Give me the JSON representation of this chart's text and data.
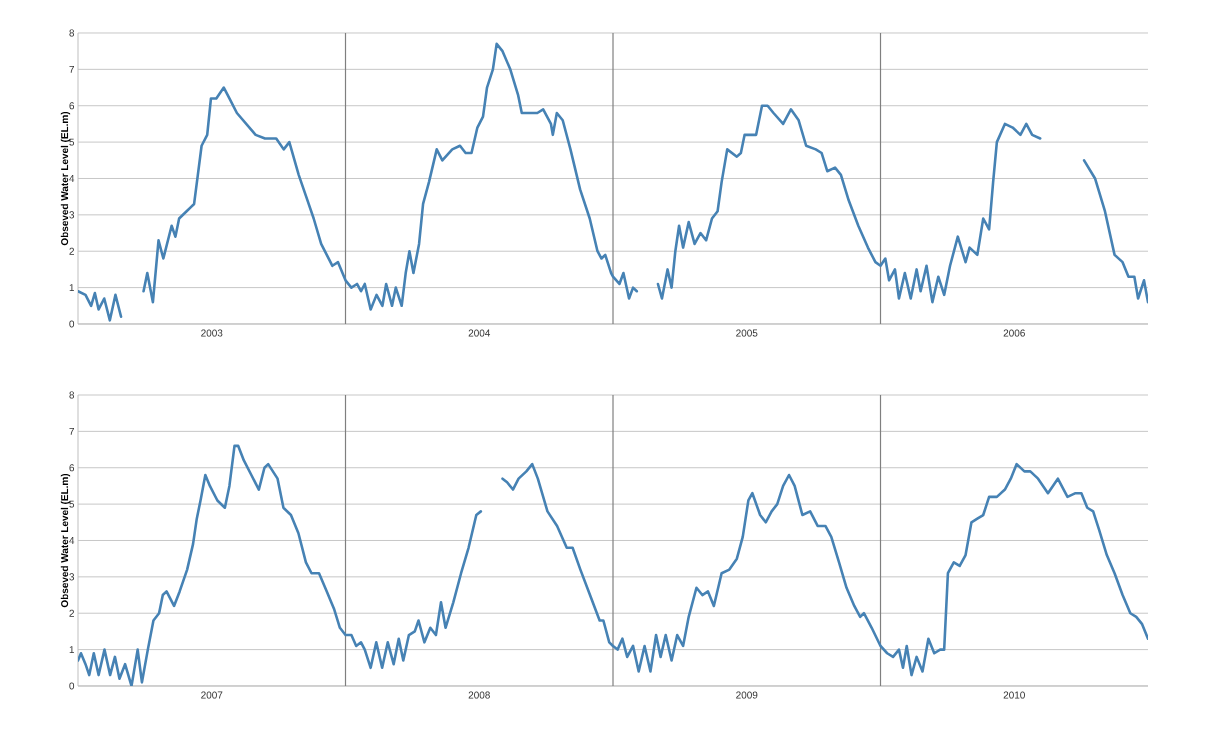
{
  "chart_data": [
    {
      "type": "line",
      "ylabel": "Obseved Water Level (EL.m)",
      "grid": "y",
      "xlim": [
        2003,
        2007
      ],
      "ylim": [
        0,
        8
      ],
      "yticks": [
        0,
        1,
        2,
        3,
        4,
        5,
        6,
        7,
        8
      ],
      "xticks": [
        {
          "value": 2003.5,
          "label": "2003"
        },
        {
          "value": 2004.5,
          "label": "2004"
        },
        {
          "value": 2005.5,
          "label": "2005"
        },
        {
          "value": 2006.5,
          "label": "2006"
        }
      ],
      "ref_lines": [
        {
          "axis": "x",
          "value": 2004,
          "color": "#7f7f7f"
        },
        {
          "axis": "x",
          "value": 2005,
          "color": "#7f7f7f"
        },
        {
          "axis": "x",
          "value": 2006,
          "color": "#7f7f7f"
        }
      ],
      "x": [
        2003.0,
        2003.028,
        2003.049,
        2003.063,
        2003.077,
        2003.098,
        2003.119,
        2003.14,
        2003.161,
        2003.2,
        2003.245,
        2003.259,
        2003.28,
        2003.301,
        2003.319,
        2003.35,
        2003.364,
        2003.378,
        2003.406,
        2003.42,
        2003.434,
        2003.448,
        2003.462,
        2003.483,
        2003.497,
        2003.517,
        2003.545,
        2003.566,
        2003.594,
        2003.629,
        2003.664,
        2003.699,
        2003.741,
        2003.769,
        2003.79,
        2003.825,
        2003.853,
        2003.881,
        2003.909,
        2003.93,
        2003.951,
        2003.972,
        2004.0,
        2004.022,
        2004.043,
        2004.058,
        2004.072,
        2004.094,
        2004.116,
        2004.138,
        2004.152,
        2004.174,
        2004.188,
        2004.21,
        2004.225,
        2004.239,
        2004.254,
        2004.275,
        2004.29,
        2004.312,
        2004.341,
        2004.362,
        2004.399,
        2004.428,
        2004.449,
        2004.471,
        2004.493,
        2004.514,
        2004.529,
        2004.551,
        2004.565,
        2004.587,
        2004.616,
        2004.645,
        2004.659,
        2004.688,
        2004.717,
        2004.739,
        2004.768,
        2004.775,
        2004.79,
        2004.812,
        2004.841,
        2004.877,
        2004.913,
        2004.942,
        2004.957,
        2004.971,
        2004.993,
        2005.0,
        2005.024,
        2005.039,
        2005.06,
        2005.075,
        2005.089,
        2005.13,
        2005.168,
        2005.183,
        2005.204,
        2005.219,
        2005.233,
        2005.247,
        2005.262,
        2005.283,
        2005.305,
        2005.327,
        2005.348,
        2005.37,
        2005.391,
        2005.406,
        2005.427,
        2005.463,
        2005.478,
        2005.492,
        2005.521,
        2005.535,
        2005.557,
        2005.578,
        2005.6,
        2005.636,
        2005.665,
        2005.694,
        2005.722,
        2005.758,
        2005.78,
        2005.801,
        2005.83,
        2005.852,
        2005.881,
        2005.917,
        2005.953,
        2005.981,
        2006.0,
        2006.018,
        2006.032,
        2006.054,
        2006.069,
        2006.091,
        2006.113,
        2006.135,
        2006.15,
        2006.172,
        2006.194,
        2006.216,
        2006.238,
        2006.26,
        2006.289,
        2006.318,
        2006.333,
        2006.362,
        2006.384,
        2006.406,
        2006.421,
        2006.435,
        2006.465,
        2006.494,
        2006.523,
        2006.545,
        2006.567,
        2006.597,
        2006.68,
        2006.761,
        2006.802,
        2006.839,
        2006.875,
        2006.905,
        2006.927,
        2006.949,
        2006.963,
        2006.985,
        2007.0
      ],
      "series": [
        {
          "color": "#4682b4",
          "values": [
            0.9,
            0.8,
            0.5,
            0.85,
            0.4,
            0.7,
            0.1,
            0.8,
            0.2,
            null,
            0.9,
            1.4,
            0.6,
            2.3,
            1.8,
            2.7,
            2.4,
            2.9,
            3.1,
            3.2,
            3.3,
            4.1,
            4.9,
            5.2,
            6.2,
            6.2,
            6.5,
            6.2,
            5.8,
            5.5,
            5.2,
            5.1,
            5.1,
            4.8,
            5.0,
            4.1,
            3.5,
            2.9,
            2.2,
            1.9,
            1.6,
            1.7,
            1.2,
            1.0,
            1.1,
            0.9,
            1.1,
            0.4,
            0.8,
            0.5,
            1.1,
            0.5,
            1.0,
            0.5,
            1.4,
            2.0,
            1.4,
            2.2,
            3.3,
            3.9,
            4.8,
            4.5,
            4.8,
            4.9,
            4.7,
            4.7,
            5.4,
            5.7,
            6.5,
            7.0,
            7.7,
            7.5,
            7.0,
            6.3,
            5.8,
            5.8,
            5.8,
            5.9,
            5.5,
            5.2,
            5.8,
            5.6,
            4.8,
            3.7,
            2.9,
            2.0,
            1.8,
            1.9,
            1.4,
            1.3,
            1.1,
            1.4,
            0.7,
            1.0,
            0.9,
            null,
            1.1,
            0.7,
            1.5,
            1.0,
            2.0,
            2.7,
            2.1,
            2.8,
            2.2,
            2.5,
            2.3,
            2.9,
            3.1,
            3.9,
            4.8,
            4.6,
            4.7,
            5.2,
            5.2,
            5.2,
            6.0,
            6.0,
            5.8,
            5.5,
            5.9,
            5.6,
            4.9,
            4.8,
            4.7,
            4.2,
            4.3,
            4.1,
            3.4,
            2.7,
            2.1,
            1.7,
            1.6,
            1.8,
            1.2,
            1.5,
            0.7,
            1.4,
            0.7,
            1.5,
            0.9,
            1.6,
            0.6,
            1.3,
            0.8,
            1.6,
            2.4,
            1.7,
            2.1,
            1.9,
            2.9,
            2.6,
            3.9,
            5.0,
            5.5,
            5.4,
            5.2,
            5.5,
            5.2,
            5.1,
            null,
            4.5,
            4.0,
            3.1,
            1.9,
            1.7,
            1.3,
            1.3,
            0.7,
            1.2,
            0.6
          ]
        }
      ]
    },
    {
      "type": "line",
      "ylabel": "Obseved Water Level (EL.m)",
      "grid": "y",
      "xlim": [
        2007,
        2011
      ],
      "ylim": [
        0,
        8
      ],
      "yticks": [
        0,
        1,
        2,
        3,
        4,
        5,
        6,
        7,
        8
      ],
      "xticks": [
        {
          "value": 2007.5,
          "label": "2007"
        },
        {
          "value": 2008.5,
          "label": "2008"
        },
        {
          "value": 2009.5,
          "label": "2009"
        },
        {
          "value": 2010.5,
          "label": "2010"
        }
      ],
      "ref_lines": [
        {
          "axis": "x",
          "value": 2008,
          "color": "#7f7f7f"
        },
        {
          "axis": "x",
          "value": 2009,
          "color": "#7f7f7f"
        },
        {
          "axis": "x",
          "value": 2010,
          "color": "#7f7f7f"
        }
      ],
      "x": [
        2007.0,
        2007.011,
        2007.028,
        2007.042,
        2007.059,
        2007.077,
        2007.099,
        2007.12,
        2007.138,
        2007.155,
        2007.176,
        2007.2,
        2007.223,
        2007.239,
        2007.261,
        2007.282,
        2007.303,
        2007.317,
        2007.331,
        2007.359,
        2007.38,
        2007.408,
        2007.43,
        2007.444,
        2007.458,
        2007.476,
        2007.493,
        2007.521,
        2007.549,
        2007.566,
        2007.585,
        2007.599,
        2007.62,
        2007.648,
        2007.676,
        2007.697,
        2007.711,
        2007.746,
        2007.768,
        2007.796,
        2007.824,
        2007.852,
        2007.873,
        2007.901,
        2007.93,
        2007.958,
        2007.979,
        2008.0,
        2008.022,
        2008.04,
        2008.058,
        2008.072,
        2008.094,
        2008.115,
        2008.137,
        2008.158,
        2008.18,
        2008.199,
        2008.216,
        2008.237,
        2008.259,
        2008.273,
        2008.295,
        2008.317,
        2008.338,
        2008.357,
        2008.374,
        2008.403,
        2008.432,
        2008.46,
        2008.489,
        2008.506,
        2008.55,
        2008.587,
        2008.604,
        2008.626,
        2008.647,
        2008.676,
        2008.698,
        2008.719,
        2008.755,
        2008.791,
        2008.827,
        2008.849,
        2008.878,
        2008.914,
        2008.95,
        2008.964,
        2008.986,
        2009.0,
        2009.017,
        2009.035,
        2009.053,
        2009.075,
        2009.096,
        2009.118,
        2009.14,
        2009.161,
        2009.178,
        2009.197,
        2009.219,
        2009.24,
        2009.262,
        2009.283,
        2009.312,
        2009.334,
        2009.355,
        2009.377,
        2009.406,
        2009.435,
        2009.463,
        2009.485,
        2009.506,
        2009.521,
        2009.55,
        2009.571,
        2009.593,
        2009.614,
        2009.636,
        2009.658,
        2009.679,
        2009.708,
        2009.737,
        2009.765,
        2009.794,
        2009.816,
        2009.845,
        2009.873,
        2009.902,
        2009.924,
        2009.938,
        2009.967,
        2010.0,
        2010.025,
        2010.047,
        2010.069,
        2010.084,
        2010.098,
        2010.116,
        2010.135,
        2010.157,
        2010.179,
        2010.201,
        2010.223,
        2010.238,
        2010.252,
        2010.274,
        2010.296,
        2010.318,
        2010.34,
        2010.362,
        2010.384,
        2010.406,
        2010.435,
        2010.465,
        2010.487,
        2010.509,
        2010.538,
        2010.56,
        2010.589,
        2010.626,
        2010.663,
        2010.699,
        2010.729,
        2010.751,
        2010.773,
        2010.795,
        2010.817,
        2010.846,
        2010.875,
        2010.905,
        2010.934,
        2010.956,
        2010.978,
        2011.0
      ],
      "series": [
        {
          "color": "#4682b4",
          "values": [
            0.7,
            0.9,
            0.6,
            0.3,
            0.9,
            0.3,
            1.0,
            0.3,
            0.8,
            0.2,
            0.6,
            0.0,
            1.0,
            0.1,
            1.0,
            1.8,
            2.0,
            2.5,
            2.6,
            2.2,
            2.6,
            3.2,
            3.9,
            4.6,
            5.1,
            5.8,
            5.5,
            5.1,
            4.9,
            5.5,
            6.6,
            6.6,
            6.2,
            5.8,
            5.4,
            6.0,
            6.1,
            5.7,
            4.9,
            4.7,
            4.2,
            3.4,
            3.1,
            3.1,
            2.6,
            2.1,
            1.6,
            1.4,
            1.4,
            1.1,
            1.2,
            1.0,
            0.5,
            1.2,
            0.5,
            1.2,
            0.6,
            1.3,
            0.7,
            1.4,
            1.5,
            1.8,
            1.2,
            1.6,
            1.4,
            2.3,
            1.6,
            2.3,
            3.1,
            3.8,
            4.7,
            4.8,
            null,
            5.7,
            5.6,
            5.4,
            5.7,
            5.9,
            6.1,
            5.7,
            4.8,
            4.4,
            3.8,
            3.8,
            3.2,
            2.5,
            1.8,
            1.8,
            1.2,
            1.1,
            1.0,
            1.3,
            0.8,
            1.1,
            0.4,
            1.1,
            0.4,
            1.4,
            0.8,
            1.4,
            0.7,
            1.4,
            1.1,
            1.9,
            2.7,
            2.5,
            2.6,
            2.2,
            3.1,
            3.2,
            3.5,
            4.1,
            5.1,
            5.3,
            4.7,
            4.5,
            4.8,
            5.0,
            5.5,
            5.8,
            5.5,
            4.7,
            4.8,
            4.4,
            4.4,
            4.1,
            3.4,
            2.7,
            2.2,
            1.9,
            2.0,
            1.6,
            1.1,
            0.9,
            0.8,
            1.0,
            0.5,
            1.1,
            0.3,
            0.8,
            0.4,
            1.3,
            0.9,
            1.0,
            1.0,
            3.1,
            3.4,
            3.3,
            3.6,
            4.5,
            4.6,
            4.7,
            5.2,
            5.2,
            5.4,
            5.7,
            6.1,
            5.9,
            5.9,
            5.7,
            5.3,
            5.7,
            5.2,
            5.3,
            5.3,
            4.9,
            4.8,
            4.3,
            3.6,
            3.1,
            2.5,
            2.0,
            1.9,
            1.7,
            1.3
          ]
        }
      ]
    }
  ]
}
